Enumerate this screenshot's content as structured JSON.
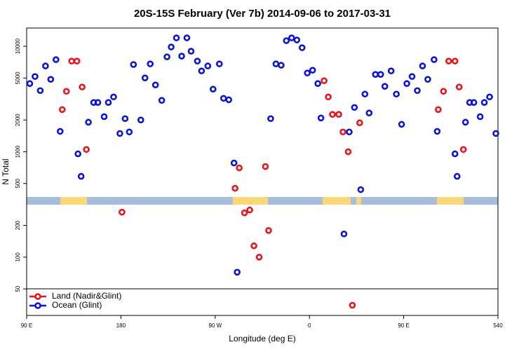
{
  "chart_data": {
    "type": "scatter",
    "title": "20S-15S February (Ver 7b)   2014-09-06 to 2017-03-31",
    "x_label": "Longitude (deg E)",
    "y_label": "N Total",
    "log_y": true,
    "legend": "bottom-left",
    "xlim": [
      90,
      540
    ],
    "xticks": [
      {
        "value": 90,
        "label": "90 E"
      },
      180,
      {
        "value": 270,
        "label": "90 W"
      },
      {
        "value": 360,
        "label": "0"
      },
      {
        "value": 450,
        "label": "90 E"
      },
      540
    ],
    "ylim": [
      28,
      14900
    ],
    "yticks": [
      50,
      100,
      200,
      500,
      1000,
      2000,
      5000,
      10000
    ],
    "series": [
      {
        "name": "Land (Nadir&Glint)",
        "color": "#e8141a",
        "x": [
          124,
          128,
          133,
          138,
          143,
          147,
          181,
          289,
          293,
          298,
          303,
          307,
          312,
          318,
          321,
          374,
          378,
          382,
          388,
          392,
          397,
          401,
          408,
          483,
          488,
          493,
          499,
          503,
          507
        ],
        "values": [
          2510,
          3740,
          7240,
          7240,
          4110,
          1050,
          267,
          450,
          703,
          263,
          280,
          128,
          100,
          724,
          179,
          4710,
          3310,
          2260,
          2260,
          1540,
          1000,
          35,
          1880,
          2510,
          3740,
          7240,
          7240,
          4110,
          1050
        ]
      },
      {
        "name": "Ocean (Glint)",
        "color": "#0a14d2",
        "x": [
          93,
          98,
          103,
          108,
          113,
          118,
          122,
          139,
          142,
          149,
          154,
          158,
          164,
          168,
          173,
          179,
          184,
          188,
          192,
          199,
          203,
          208,
          213,
          219,
          224,
          228,
          233,
          238,
          243,
          247,
          253,
          257,
          263,
          268,
          274,
          278,
          283,
          288,
          291,
          323,
          328,
          333,
          338,
          343,
          348,
          353,
          358,
          363,
          368,
          371,
          393,
          398,
          403,
          409,
          413,
          417,
          423,
          428,
          432,
          438,
          443,
          448,
          453,
          458,
          463,
          468,
          473,
          479,
          482,
          499,
          501,
          509,
          513,
          517,
          523,
          527,
          532,
          538
        ],
        "values": [
          4430,
          5170,
          3800,
          6510,
          4860,
          7470,
          1560,
          955,
          584,
          1905,
          2930,
          2930,
          2150,
          2930,
          3310,
          1490,
          2060,
          1540,
          6710,
          2000,
          5010,
          6810,
          4300,
          3070,
          7940,
          9850,
          12020,
          8070,
          12020,
          8980,
          7240,
          5840,
          6510,
          3920,
          6810,
          3210,
          3110,
          782,
          72,
          2060,
          6810,
          6610,
          11310,
          12020,
          11480,
          9700,
          5580,
          5930,
          4430,
          2090,
          166,
          1540,
          2630,
          437,
          3520,
          2330,
          5410,
          5410,
          4170,
          5840,
          3520,
          1820,
          4430,
          5170,
          3800,
          6510,
          4860,
          7470,
          1560,
          955,
          584,
          1905,
          2930,
          2930,
          2150,
          2930,
          3310,
          1490
        ]
      }
    ]
  }
}
